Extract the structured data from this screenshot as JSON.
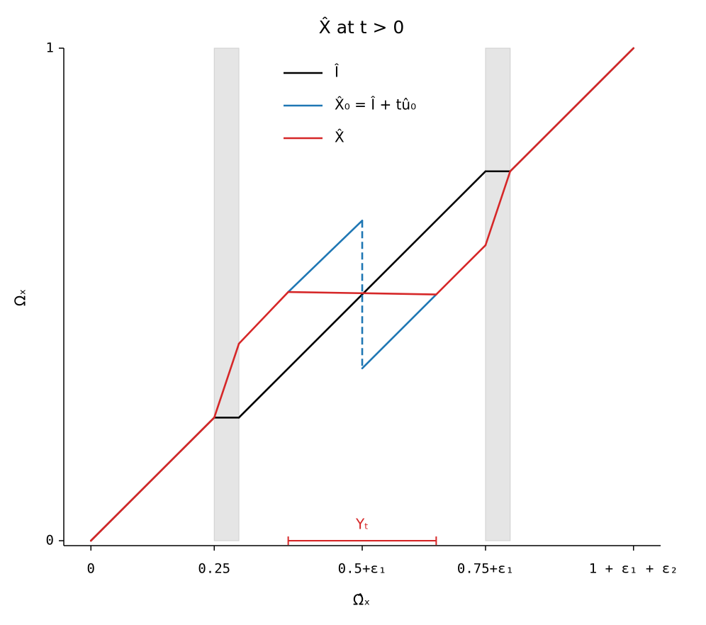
{
  "chart_data": {
    "type": "line",
    "title": "X̂  at  t > 0",
    "x_label": "Ω̂ₓ",
    "y_label": "Ωₓ",
    "xlim": [
      -0.055,
      1.155
    ],
    "ylim": [
      -0.01,
      1
    ],
    "xticks": [
      0,
      0.25,
      {
        "value": 0.55,
        "label": "0.5+ε₁"
      },
      {
        "value": 0.8,
        "label": "0.75+ε₁"
      },
      {
        "value": 1.1,
        "label": "1 + ε₁ + ε₂"
      }
    ],
    "yticks": [
      0,
      1
    ],
    "legend": "upper center",
    "shaded_regions": [
      [
        0.25,
        0.3
      ],
      [
        0.8,
        0.85
      ]
    ],
    "shade_color": "#e5e5e5",
    "series": [
      {
        "name": "Î",
        "color": "#000000",
        "x": [
          0,
          0.25,
          0.3,
          0.8,
          0.85,
          1.1
        ],
        "values": [
          0,
          0.25,
          0.25,
          0.75,
          0.75,
          1
        ]
      },
      {
        "name": "X̂₀ = Î + tû₀",
        "color": "#1f77b4",
        "x": [
          0.4,
          0.55,
          0.55,
          0.7
        ],
        "values": [
          0.505,
          0.65,
          0.35,
          0.5
        ],
        "dashed_segments": [
          1
        ]
      },
      {
        "name": "X̂",
        "color": "#d62728",
        "x": [
          0,
          0.25,
          0.3,
          0.4,
          0.7,
          0.8,
          0.85,
          1.1
        ],
        "values": [
          0,
          0.25,
          0.4,
          0.505,
          0.5,
          0.6,
          0.75,
          1
        ]
      }
    ],
    "interval": {
      "text": "Υₜ",
      "x": [
        0.4,
        0.7
      ],
      "y": 0,
      "color": "#d62728"
    }
  }
}
